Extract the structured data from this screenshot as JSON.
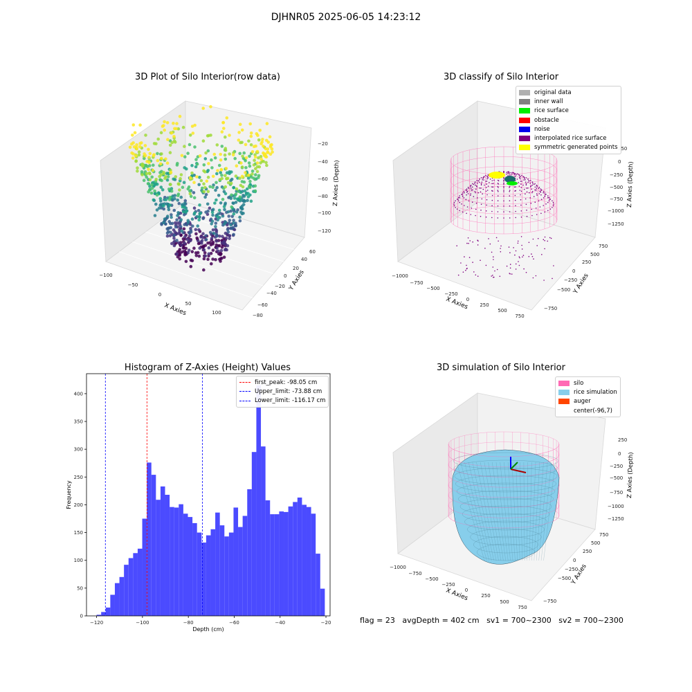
{
  "figure": {
    "suptitle": "DJHNR05 2025-06-05 14:23:12",
    "status": {
      "flag": "flag = 23",
      "avg_depth": "avgDepth = 402 cm",
      "sv1": "sv1 = 700~2300",
      "sv2": "sv2 = 700~2300"
    }
  },
  "colors": {
    "original_data": "#b0b0b0",
    "inner_wall": "#808080",
    "rice_surface": "#00ee00",
    "obstacle": "#ff0000",
    "noise": "#0000ee",
    "interpolated_rice_surface": "#800080",
    "symmetric_generated_points": "#ffff00",
    "silo": "#ff69b4",
    "rice_simulation": "#87ceeb",
    "auger": "#ff4500",
    "hist_bar": "#4b4bff",
    "first_peak": "#ff0000",
    "upper_limit": "#0000ff",
    "lower_limit": "#0000ff"
  },
  "chart_data": [
    {
      "type": "scatter",
      "title": "3D Plot of Silo Interior(row data)",
      "xlabel": "X Axies",
      "ylabel": "Y Axies",
      "zlabel": "Z Axies (Depth)",
      "x_ticks": [
        "−100",
        "−50",
        "0",
        "50",
        "100"
      ],
      "y_ticks": [
        "−80",
        "−60",
        "−40",
        "−20",
        "0",
        "20",
        "40",
        "60"
      ],
      "z_ticks": [
        "−20",
        "−40",
        "−60",
        "−80",
        "−100",
        "−120"
      ],
      "colormap": "viridis"
    },
    {
      "type": "scatter",
      "title": "3D classify of Silo Interior",
      "xlabel": "X Axies",
      "ylabel": "Y Axies",
      "zlabel": "Z Axies (Depth)",
      "x_ticks": [
        "−1000",
        "−750",
        "−500",
        "−250",
        "0",
        "250",
        "500",
        "750"
      ],
      "y_ticks": [
        "−750",
        "−500",
        "−250",
        "0",
        "250",
        "500",
        "750"
      ],
      "z_ticks": [
        "250",
        "0",
        "−250",
        "−500",
        "−750",
        "−1000",
        "−1250"
      ],
      "legend": [
        "original data",
        "inner wall",
        "rice surface",
        "obstacle",
        "noise",
        "interpolated rice surface",
        "symmetric generated points"
      ],
      "legend_position": "top-right"
    },
    {
      "type": "bar",
      "title": "Histogram of Z-Axies (Height) Values",
      "xlabel": "Depth (cm)",
      "ylabel": "Frequency",
      "xlim": [
        -124.4,
        -18.2
      ],
      "ylim": [
        0,
        436
      ],
      "x_ticks": [
        -120,
        -100,
        -80,
        -60,
        -40,
        -20
      ],
      "x_tick_labels": [
        "−120",
        "−100",
        "−80",
        "−60",
        "−40",
        "−20"
      ],
      "y_ticks": [
        0,
        50,
        100,
        150,
        200,
        250,
        300,
        350,
        400
      ],
      "bin_start": -120.0,
      "bin_width": 1.99,
      "values": [
        2,
        7,
        15,
        38,
        59,
        70,
        92,
        104,
        113,
        121,
        175,
        276,
        254,
        209,
        233,
        218,
        196,
        195,
        201,
        184,
        178,
        167,
        150,
        132,
        145,
        156,
        186,
        163,
        143,
        150,
        195,
        160,
        180,
        228,
        295,
        415,
        305,
        208,
        183,
        183,
        188,
        187,
        197,
        205,
        213,
        200,
        196,
        184,
        112,
        49
      ],
      "reference_lines": [
        {
          "label": "first_peak: -98.05 cm",
          "x": -98.05
        },
        {
          "label": "Upper_limit: -73.88 cm",
          "x": -73.88
        },
        {
          "label": "Lower_limit: -116.17 cm",
          "x": -116.17
        }
      ],
      "legend_position": "top-right"
    },
    {
      "type": "scatter",
      "title": "3D simulation of Silo Interior",
      "xlabel": "X Axies",
      "ylabel": "Y Axies",
      "zlabel": "Z Axies (Depth)",
      "x_ticks": [
        "−1000",
        "−750",
        "−500",
        "−250",
        "0",
        "250",
        "500",
        "750"
      ],
      "y_ticks": [
        "−750",
        "−500",
        "−250",
        "0",
        "250",
        "500",
        "750"
      ],
      "z_ticks": [
        "250",
        "0",
        "−250",
        "−500",
        "−750",
        "−1000",
        "−1250"
      ],
      "legend": [
        "silo",
        "rice simulation",
        "auger",
        "center(-96,7)"
      ],
      "legend_position": "top-right"
    }
  ]
}
